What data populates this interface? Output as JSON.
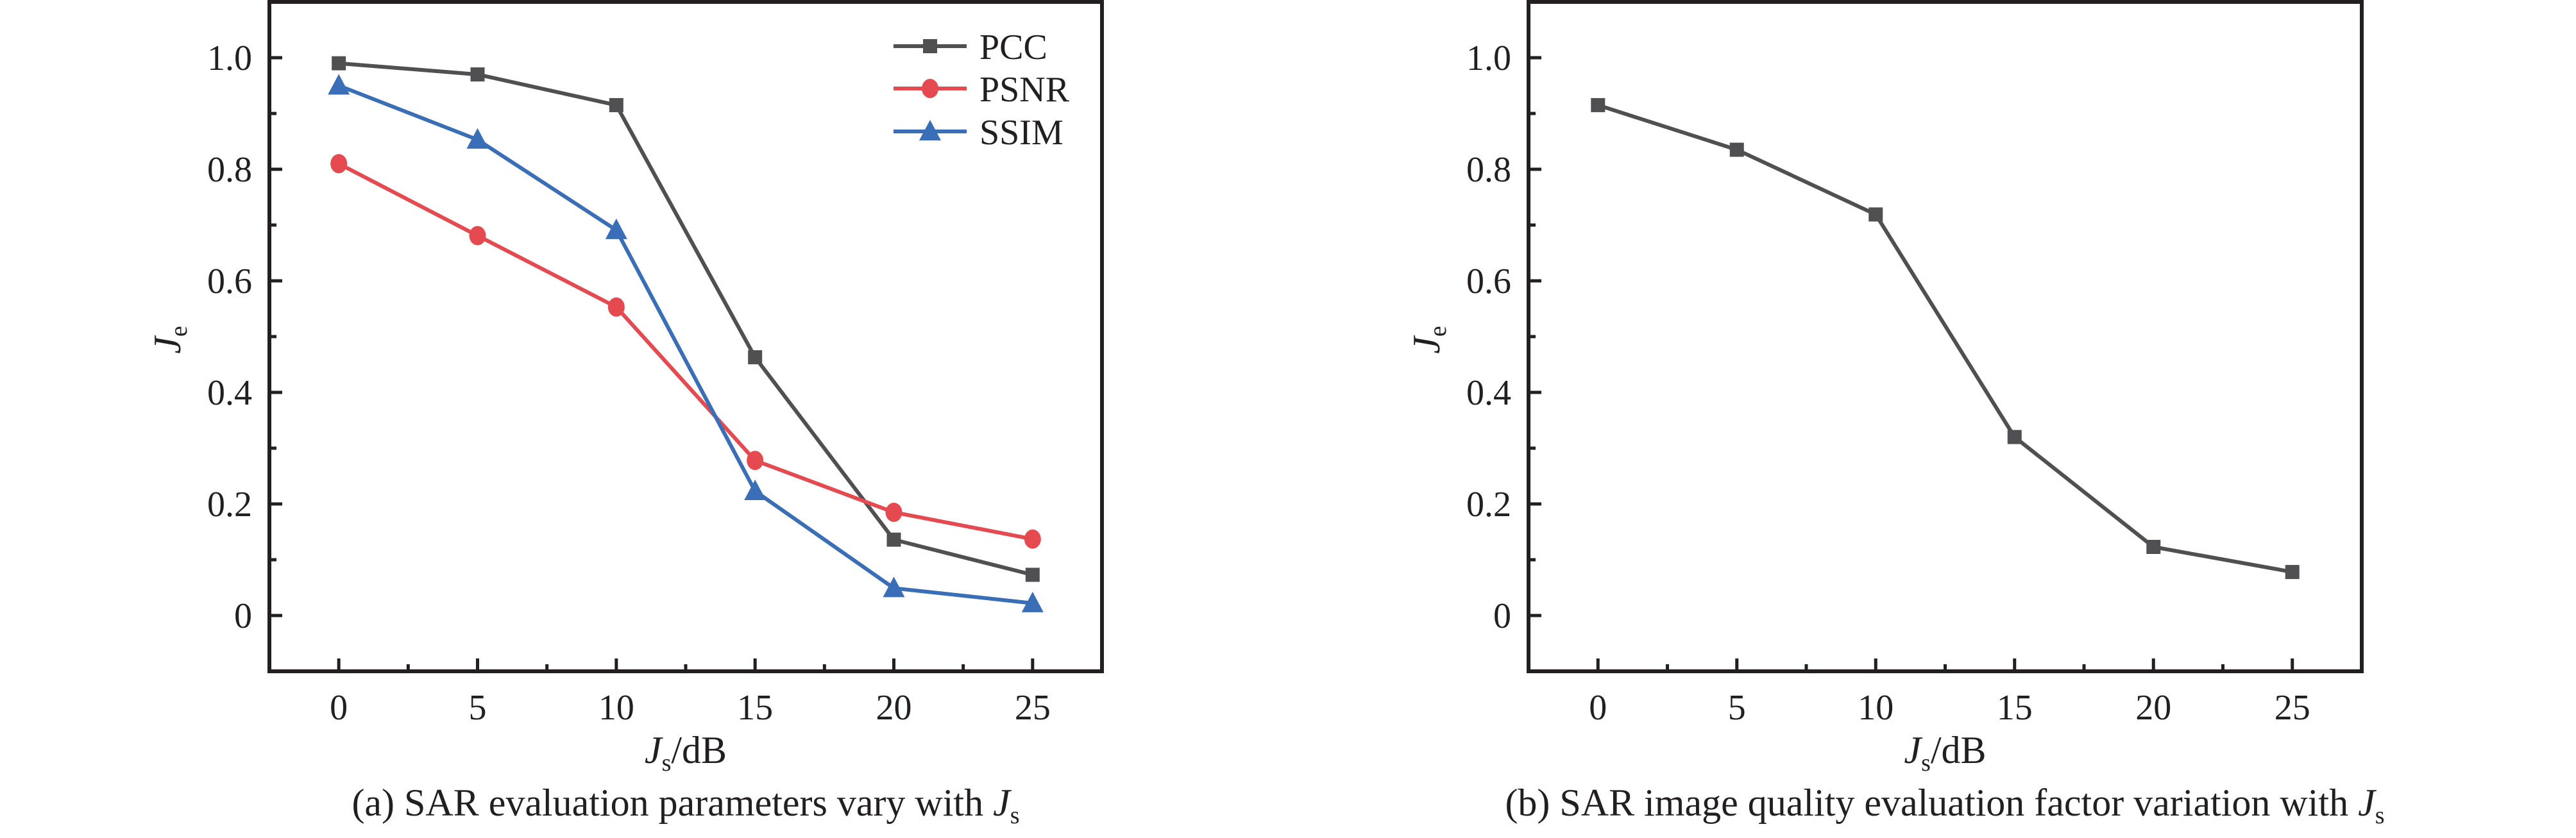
{
  "colors": {
    "axis": "#231f20",
    "pcc": "#505052",
    "psnr": "#e64a51",
    "ssim": "#3a6eb6",
    "factor": "#505052"
  },
  "chart_data": [
    {
      "type": "line",
      "id": "a",
      "title": "",
      "caption": {
        "prefix": "(a) SAR evaluation parameters vary with ",
        "var": "J",
        "sub": "s"
      },
      "xlabel": {
        "var": "J",
        "sub": "s",
        "unit": "/dB"
      },
      "ylabel": {
        "var": "J",
        "sub": "e"
      },
      "x": [
        0,
        5,
        10,
        15,
        20,
        25
      ],
      "xticks": [
        "0",
        "5",
        "10",
        "15",
        "20",
        "25"
      ],
      "yticks": [
        "0",
        "0.2",
        "0.4",
        "0.6",
        "0.8",
        "1.0"
      ],
      "ytick_values": [
        0,
        0.2,
        0.4,
        0.6,
        0.8,
        1.0
      ],
      "xlim": [
        -2.5,
        27.5
      ],
      "ylim": [
        -0.1,
        1.1
      ],
      "grid": false,
      "legend": "top-right",
      "series": [
        {
          "name": "PCC",
          "marker": "square",
          "color_key": "pcc",
          "values": [
            0.99,
            0.97,
            0.915,
            0.463,
            0.136,
            0.073
          ]
        },
        {
          "name": "PSNR",
          "marker": "circle",
          "color_key": "psnr",
          "values": [
            0.81,
            0.681,
            0.553,
            0.278,
            0.185,
            0.137
          ]
        },
        {
          "name": "SSIM",
          "marker": "triangle",
          "color_key": "ssim",
          "values": [
            0.95,
            0.853,
            0.691,
            0.223,
            0.049,
            0.022
          ]
        }
      ]
    },
    {
      "type": "line",
      "id": "b",
      "title": "",
      "caption": {
        "prefix": "(b) SAR image quality evaluation factor variation with ",
        "var": "J",
        "sub": "s"
      },
      "xlabel": {
        "var": "J",
        "sub": "s",
        "unit": "/dB"
      },
      "ylabel": {
        "var": "J",
        "sub": "e"
      },
      "x": [
        0,
        5,
        10,
        15,
        20,
        25
      ],
      "xticks": [
        "0",
        "5",
        "10",
        "15",
        "20",
        "25"
      ],
      "yticks": [
        "0",
        "0.2",
        "0.4",
        "0.6",
        "0.8",
        "1.0"
      ],
      "ytick_values": [
        0,
        0.2,
        0.4,
        0.6,
        0.8,
        1.0
      ],
      "xlim": [
        -2.5,
        27.5
      ],
      "ylim": [
        -0.1,
        1.1
      ],
      "grid": false,
      "legend": "none",
      "series": [
        {
          "name": "Je",
          "marker": "square",
          "color_key": "factor",
          "values": [
            0.915,
            0.835,
            0.719,
            0.32,
            0.123,
            0.078
          ]
        }
      ]
    }
  ]
}
